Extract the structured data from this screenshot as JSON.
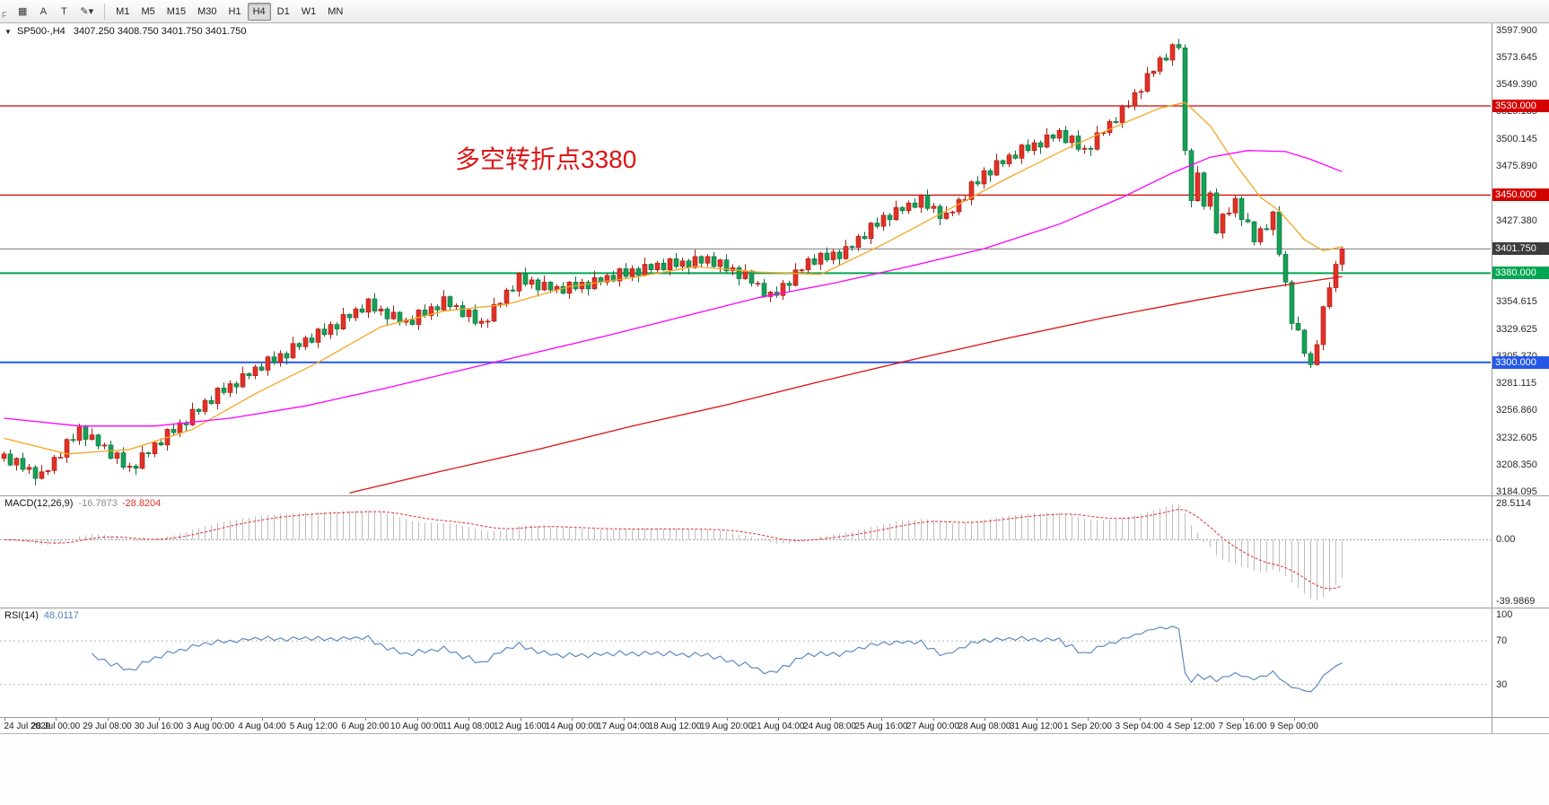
{
  "toolbar": {
    "corner_label": "F",
    "left_buttons": [
      {
        "name": "chart-grid",
        "glyph": "▦"
      },
      {
        "name": "text-annotate",
        "glyph": "A"
      },
      {
        "name": "text-label",
        "glyph": "T"
      },
      {
        "name": "draw-tools",
        "glyph": "✎"
      },
      {
        "name": "draw-tools-caret",
        "glyph": "▾"
      }
    ],
    "timeframes": [
      "M1",
      "M5",
      "M15",
      "M30",
      "H1",
      "H4",
      "D1",
      "W1",
      "MN"
    ],
    "active_timeframe": "H4"
  },
  "symbol_line": {
    "dropdown_icon": "▼",
    "symbol": "SP500-,H4",
    "ohlc": "3407.250 3408.750 3401.750 3401.750"
  },
  "annotation": {
    "text": "多空转折点3380",
    "color": "#dd1414"
  },
  "chart_data": {
    "type": "candlestick",
    "symbol": "SP500-",
    "timeframe": "H4",
    "title": "SP500-,H4",
    "ohlc_display": [
      "3407.250",
      "3408.750",
      "3401.750",
      "3401.750"
    ],
    "price_range": [
      3180,
      3604
    ],
    "grid": false,
    "up_candle_convention": "red-up-green-down",
    "bull_color": "#e13127",
    "bear_color": "#16a055",
    "bull_border": "#a81b10",
    "bear_border": "#0c6e3c",
    "first_open": 3214,
    "open_equals_previous_close": true,
    "high_wick_cycle": [
      2,
      4,
      1,
      5,
      3,
      2,
      6,
      1
    ],
    "low_wick_cycle": [
      3,
      1,
      5,
      2,
      4,
      6,
      1,
      3
    ],
    "closes": [
      3218,
      3208,
      3214,
      3204,
      3206,
      3196,
      3202,
      3203,
      3215,
      3215,
      3231,
      3230,
      3242,
      3231,
      3235,
      3225,
      3226,
      3214,
      3219,
      3206,
      3207,
      3205,
      3219,
      3218,
      3228,
      3226,
      3240,
      3237,
      3246,
      3244,
      3258,
      3256,
      3266,
      3263,
      3277,
      3273,
      3281,
      3278,
      3290,
      3288,
      3296,
      3293,
      3305,
      3300,
      3308,
      3304,
      3317,
      3314,
      3322,
      3318,
      3330,
      3325,
      3334,
      3330,
      3343,
      3340,
      3348,
      3345,
      3357,
      3346,
      3348,
      3339,
      3345,
      3336,
      3338,
      3334,
      3347,
      3342,
      3350,
      3347,
      3359,
      3350,
      3351,
      3341,
      3347,
      3335,
      3337,
      3337,
      3352,
      3353,
      3365,
      3364,
      3380,
      3370,
      3374,
      3365,
      3372,
      3365,
      3368,
      3362,
      3372,
      3366,
      3372,
      3366,
      3376,
      3372,
      3378,
      3373,
      3384,
      3377,
      3384,
      3378,
      3388,
      3383,
      3389,
      3383,
      3393,
      3386,
      3391,
      3385,
      3395,
      3389,
      3395,
      3386,
      3392,
      3382,
      3385,
      3375,
      3382,
      3371,
      3371,
      3359,
      3363,
      3360,
      3371,
      3369,
      3383,
      3383,
      3393,
      3388,
      3398,
      3392,
      3399,
      3393,
      3404,
      3403,
      3413,
      3411,
      3425,
      3422,
      3432,
      3428,
      3439,
      3436,
      3443,
      3439,
      3450,
      3438,
      3440,
      3429,
      3434,
      3435,
      3446,
      3446,
      3462,
      3460,
      3472,
      3468,
      3481,
      3478,
      3486,
      3483,
      3495,
      3490,
      3497,
      3493,
      3504,
      3501,
      3508,
      3497,
      3503,
      3491,
      3492,
      3491,
      3506,
      3506,
      3516,
      3515,
      3530,
      3530,
      3542,
      3543,
      3559,
      3561,
      3573,
      3571,
      3585,
      3582,
      3490,
      3445,
      3470,
      3440,
      3452,
      3416,
      3433,
      3434,
      3447,
      3428,
      3426,
      3408,
      3420,
      3419,
      3435,
      3397,
      3372,
      3335,
      3329,
      3308,
      3298,
      3316,
      3350,
      3367,
      3388,
      3401.75
    ],
    "moving_averages": [
      {
        "name": "ma-fast-orange",
        "color": "#f5a623",
        "points": [
          [
            0,
            3232
          ],
          [
            10,
            3218
          ],
          [
            20,
            3222
          ],
          [
            30,
            3240
          ],
          [
            40,
            3272
          ],
          [
            50,
            3300
          ],
          [
            60,
            3332
          ],
          [
            70,
            3346
          ],
          [
            80,
            3352
          ],
          [
            90,
            3368
          ],
          [
            100,
            3376
          ],
          [
            110,
            3386
          ],
          [
            120,
            3381
          ],
          [
            130,
            3379
          ],
          [
            140,
            3406
          ],
          [
            150,
            3436
          ],
          [
            160,
            3466
          ],
          [
            170,
            3494
          ],
          [
            178,
            3514
          ],
          [
            184,
            3528
          ],
          [
            188,
            3533
          ],
          [
            192,
            3512
          ],
          [
            196,
            3478
          ],
          [
            200,
            3448
          ],
          [
            203,
            3436
          ],
          [
            207,
            3410
          ],
          [
            210,
            3400
          ],
          [
            213,
            3404
          ]
        ]
      },
      {
        "name": "ma-mid-magenta",
        "color": "#ff00ff",
        "points": [
          [
            0,
            3250
          ],
          [
            12,
            3243
          ],
          [
            24,
            3243
          ],
          [
            36,
            3250
          ],
          [
            48,
            3261
          ],
          [
            60,
            3276
          ],
          [
            72,
            3292
          ],
          [
            84,
            3308
          ],
          [
            96,
            3324
          ],
          [
            108,
            3341
          ],
          [
            120,
            3358
          ],
          [
            132,
            3371
          ],
          [
            144,
            3386
          ],
          [
            156,
            3402
          ],
          [
            168,
            3424
          ],
          [
            178,
            3448
          ],
          [
            186,
            3470
          ],
          [
            192,
            3484
          ],
          [
            198,
            3490
          ],
          [
            204,
            3489
          ],
          [
            208,
            3482
          ],
          [
            213,
            3471
          ]
        ]
      },
      {
        "name": "ma-slow-red",
        "color": "#e01010",
        "points": [
          [
            55,
            3183
          ],
          [
            70,
            3203
          ],
          [
            85,
            3222
          ],
          [
            100,
            3243
          ],
          [
            115,
            3262
          ],
          [
            130,
            3283
          ],
          [
            145,
            3303
          ],
          [
            160,
            3322
          ],
          [
            175,
            3340
          ],
          [
            190,
            3356
          ],
          [
            200,
            3366
          ],
          [
            207,
            3372
          ],
          [
            213,
            3377
          ]
        ]
      }
    ],
    "hlines": [
      {
        "price": 3530,
        "label": "3530.000",
        "color": "#d40000",
        "width": 1.2,
        "badge": "#d40000"
      },
      {
        "price": 3450,
        "label": "3450.000",
        "color": "#d40000",
        "width": 1.2,
        "badge": "#d40000"
      },
      {
        "price": 3401.75,
        "label": "3401.750",
        "color": "#7a7a7a",
        "width": 1,
        "badge": "#3c3c3c"
      },
      {
        "price": 3380,
        "label": "3380.000",
        "color": "#00a651",
        "width": 2,
        "badge": "#00a651"
      },
      {
        "price": 3300,
        "label": "3300.000",
        "color": "#2458e6",
        "width": 2,
        "badge": "#2458e6"
      }
    ],
    "y_axis_labels": [
      "3597.900",
      "3573.645",
      "3549.390",
      "3525.135",
      "3500.145",
      "3475.890",
      "3427.380",
      "3354.615",
      "3329.625",
      "3305.370",
      "3281.115",
      "3256.860",
      "3232.605",
      "3208.350",
      "3184.095"
    ],
    "x_axis_labels": [
      "24 Jul 2020",
      "28 Jul 00:00",
      "29 Jul 08:00",
      "30 Jul 16:00",
      "3 Aug 00:00",
      "4 Aug 04:00",
      "5 Aug 12:00",
      "6 Aug 20:00",
      "10 Aug 00:00",
      "11 Aug 08:00",
      "12 Aug 16:00",
      "14 Aug 00:00",
      "17 Aug 04:00",
      "18 Aug 12:00",
      "19 Aug 20:00",
      "21 Aug 04:00",
      "24 Aug 08:00",
      "25 Aug 16:00",
      "27 Aug 00:00",
      "28 Aug 08:00",
      "31 Aug 12:00",
      "1 Sep 20:00",
      "3 Sep 04:00",
      "4 Sep 12:00",
      "7 Sep 16:00",
      "9 Sep 00:00"
    ],
    "macd": {
      "label": "MACD(12,26,9)",
      "values": [
        "-16.7873",
        "-28.8204"
      ],
      "axis": [
        "28.5114",
        "0.00",
        "-39.9869"
      ],
      "fast": 12,
      "slow": 26,
      "signal": 9,
      "histogram_color": "#bdbdbd",
      "signal_color": "#e03030"
    },
    "rsi": {
      "label": "RSI(14)",
      "value": "48.0117",
      "axis": [
        "100",
        "70",
        "30"
      ],
      "period": 14,
      "levels": [
        70,
        30
      ],
      "line_color": "#4f81bd"
    }
  }
}
